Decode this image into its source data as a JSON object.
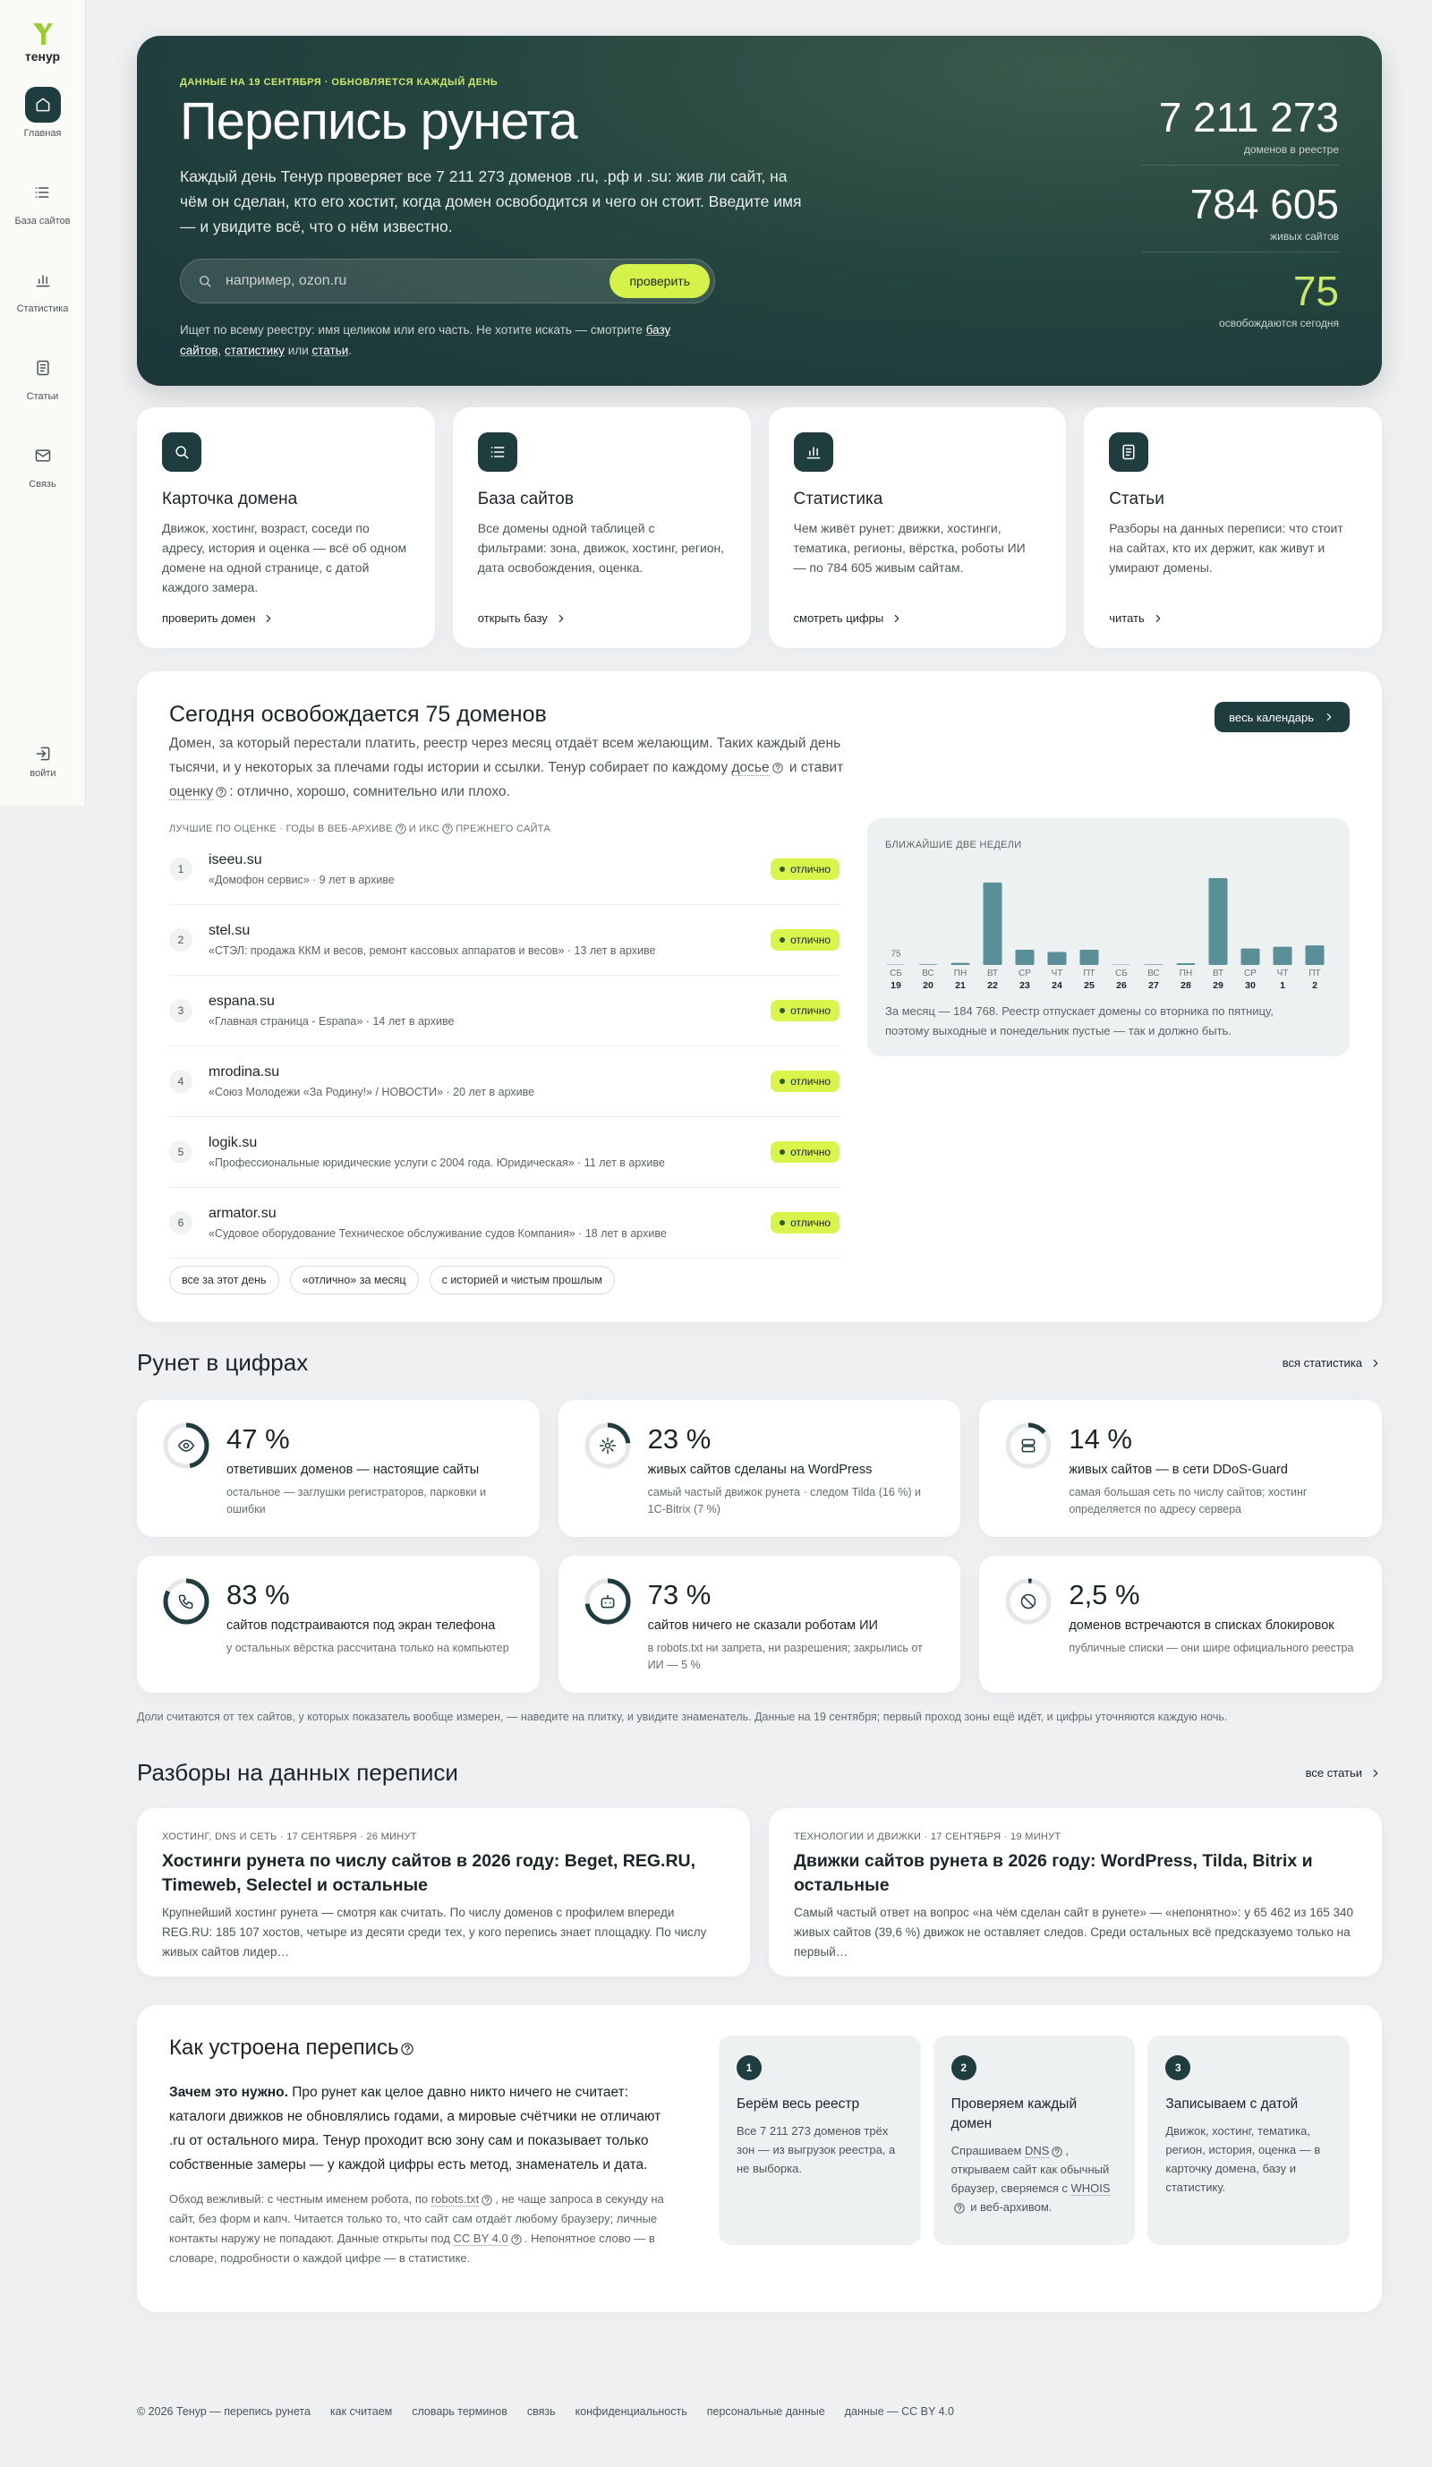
{
  "sidebar": {
    "logo": "тенур",
    "nav": [
      "Главная",
      "База сайтов",
      "Статистика",
      "Статьи",
      "Связь"
    ],
    "login": "войти"
  },
  "hero": {
    "kicker": "ДАННЫЕ НА 19 СЕНТЯБРЯ · ОБНОВЛЯЕТСЯ КАЖДЫЙ ДЕНЬ",
    "title": "Перепись рунета",
    "description": "Каждый день Тенур проверяет все 7 211 273 доменов .ru, .рф и .su: жив ли сайт, на чём он сделан, кто его хостит, когда домен освободится и чего он стоит. Введите имя — и увидите всё, что о нём известно.",
    "search_placeholder": "например, ozon.ru",
    "search_button": "проверить",
    "note": [
      "Ищет по всему реестру: имя целиком или его часть. Не хотите искать — смотрите ",
      {
        "link": "базу сайтов"
      },
      ", ",
      {
        "link": "статистику"
      },
      " или ",
      {
        "link": "статьи"
      },
      "."
    ],
    "stats": [
      {
        "value": "7 211 273",
        "label": "доменов в реестре"
      },
      {
        "value": "784 605",
        "label": "живых сайтов"
      },
      {
        "value": "75",
        "label": "освобождаются сегодня"
      }
    ]
  },
  "cards": [
    {
      "title": "Карточка домена",
      "text": "Движок, хостинг, возраст, соседи по адресу, история и оценка — всё об одном домене на одной странице, с датой каждого замера.",
      "link": "проверить домен"
    },
    {
      "title": "База сайтов",
      "text": "Все домены одной таблицей с фильтрами: зона, движок, хостинг, регион, дата освобождения, оценка.",
      "link": "открыть базу"
    },
    {
      "title": "Статистика",
      "text": "Чем живёт рунет: движки, хостинги, тематика, регионы, вёрстка, роботы ИИ — по 784 605 живым сайтам.",
      "link": "смотреть цифры"
    },
    {
      "title": "Статьи",
      "text": "Разборы на данных переписи: что стоит на сайтах, кто их держит, как живут и умирают домены.",
      "link": "читать"
    }
  ],
  "today": {
    "title": "Сегодня освобождается 75 доменов",
    "button": "весь календарь",
    "description": [
      "Домен, за который перестали платить, реестр через месяц отдаёт всем желающим. Таких каждый день тысячи, и у некоторых за плечами годы истории и ссылки. Тенур собирает по каждому ",
      {
        "term": "досье"
      },
      " и ставит ",
      {
        "term": "оценку"
      },
      ": отлично, хорошо, сомнительно или плохо."
    ],
    "list_header": [
      "ЛУЧШИЕ ПО ОЦЕНКЕ · ГОДЫ В ВЕБ-АРХИВЕ",
      {
        "term": ""
      },
      "И ИКС",
      {
        "term": ""
      },
      "ПРЕЖНЕГО САЙТА"
    ],
    "rows": [
      {
        "n": "1",
        "domain": "iseeu.su",
        "info": "«Домофон сервис» · 9 лет в архиве",
        "grade": "отлично"
      },
      {
        "n": "2",
        "domain": "stel.su",
        "info": "«СТЭЛ: продажа ККМ и весов, ремонт кассовых аппаратов и весов» · 13 лет в архиве",
        "grade": "отлично"
      },
      {
        "n": "3",
        "domain": "espana.su",
        "info": "«Главная страница - Espana» · 14 лет в архиве",
        "grade": "отлично"
      },
      {
        "n": "4",
        "domain": "mrodina.su",
        "info": "«Союз Молодежи «За Родину!» / НОВОСТИ» · 20 лет в архиве",
        "grade": "отлично"
      },
      {
        "n": "5",
        "domain": "logik.su",
        "info": "«Профессиональные юридические услуги с 2004 года. Юридическая» · 11 лет в архиве",
        "grade": "отлично"
      },
      {
        "n": "6",
        "domain": "armator.su",
        "info": "«Судовое оборудование Техническое обслуживание судов Компания» · 18 лет в архиве",
        "grade": "отлично"
      }
    ],
    "chips": [
      "все за этот день",
      "«отлично» за месяц",
      "с историей и чистым прошлым"
    ],
    "chart": {
      "type": "bar",
      "title": "БЛИЖАЙШИЕ ДВЕ НЕДЕЛИ",
      "weekdays": [
        "СБ",
        "ВС",
        "ПН",
        "ВТ",
        "СР",
        "ЧТ",
        "ПТ",
        "СБ",
        "ВС",
        "ПН",
        "ВТ",
        "СР",
        "ЧТ",
        "ПТ"
      ],
      "dates": [
        "19",
        "20",
        "21",
        "22",
        "23",
        "24",
        "25",
        "26",
        "27",
        "28",
        "29",
        "30",
        "1",
        "2"
      ],
      "values": [
        75,
        150,
        500,
        19000,
        3500,
        3000,
        3500,
        80,
        120,
        400,
        20000,
        3800,
        4200,
        4500
      ],
      "color": "#5b8f97",
      "note": "За месяц — 184 768. Реестр отпускает домены со вторника по пятницу, поэтому выходные и понедельник пустые — так и должно быть."
    }
  },
  "numbers": {
    "title": "Рунет в цифрах",
    "link": "вся статистика",
    "items": [
      {
        "value": 47,
        "label": "47 %",
        "title": "ответивших доменов — настоящие сайты",
        "text": "остальное — заглушки регистраторов, парковки и ошибки"
      },
      {
        "value": 23,
        "label": "23 %",
        "title": "живых сайтов сделаны на WordPress",
        "text": "самый частый движок рунета · следом Tilda (16 %) и 1С-Bitrix (7 %)"
      },
      {
        "value": 14,
        "label": "14 %",
        "title": "живых сайтов — в сети DDoS-Guard",
        "text": "самая большая сеть по числу сайтов; хостинг определяется по адресу сервера"
      },
      {
        "value": 83,
        "label": "83 %",
        "title": "сайтов подстраиваются под экран телефона",
        "text": "у остальных вёрстка рассчитана только на компьютер"
      },
      {
        "value": 73,
        "label": "73 %",
        "title": "сайтов ничего не сказали роботам ИИ",
        "text": "в robots.txt ни запрета, ни разрешения; закрылись от ИИ — 5 %"
      },
      {
        "value": 2.5,
        "label": "2,5 %",
        "title": "доменов встречаются в списках блокировок",
        "text": "публичные списки — они шире официального реестра"
      }
    ],
    "note": "Доли считаются от тех сайтов, у которых показатель вообще измерен, — наведите на плитку, и увидите знаменатель. Данные на 19 сентября; первый проход зоны ещё идёт, и цифры уточняются каждую ночь."
  },
  "articles": {
    "title": "Разборы на данных переписи",
    "link": "все статьи",
    "items": [
      {
        "meta": "ХОСТИНГ, DNS И СЕТЬ · 17 СЕНТЯБРЯ · 26 МИНУТ",
        "title": "Хостинги рунета по числу сайтов в 2026 году: Beget, REG.RU, Timeweb, Selectel и остальные",
        "text": "Крупнейший хостинг рунета — смотря как считать. По числу доменов с профилем впереди REG.RU: 185 107 хостов, четыре из десяти среди тех, у кого перепись знает площадку. По числу живых сайтов лидер…"
      },
      {
        "meta": "ТЕХНОЛОГИИ И ДВИЖКИ · 17 СЕНТЯБРЯ · 19 МИНУТ",
        "title": "Движки сайтов рунета в 2026 году: WordPress, Tilda, Bitrix и остальные",
        "text": "Самый частый ответ на вопрос «на чём сделан сайт в рунете» — «непонятно»: у 65 462 из 165 340 живых сайтов (39,6 %) движок не оставляет следов. Среди остальных всё предсказуемо только на первый…"
      }
    ]
  },
  "how": {
    "title": "Как устроена перепись",
    "lead_bold": "Зачем это нужно.",
    "lead": "Про рунет как целое давно никто ничего не считает: каталоги движков не обновлялись годами, а мировые счётчики не отличают .ru от остального мира. Тенур проходит всю зону сам и показывает только собственные замеры — у каждой цифры есть метод, знаменатель и дата.",
    "small": [
      "Обход вежливый: с честным именем робота, по ",
      {
        "term": "robots.txt"
      },
      ", не чаще запроса в секунду на сайт, без форм и капч. Читается только то, что сайт сам отдаёт любому браузеру; личные контакты наружу не попадают. Данные открыты под ",
      {
        "term": "CC BY 4.0"
      },
      ". Непонятное слово — в словаре, подробности о каждой цифре — в статистике."
    ],
    "steps": [
      {
        "n": "1",
        "title": "Берём весь реестр",
        "text": [
          "Все 7 211 273 доменов трёх зон — из выгрузок реестра, а не выборка."
        ]
      },
      {
        "n": "2",
        "title": "Проверяем каждый домен",
        "text": [
          "Спрашиваем ",
          {
            "term": "DNS"
          },
          ", открываем сайт как обычный браузер, сверяемся с ",
          {
            "term": "WHOIS"
          },
          " и веб-архивом."
        ]
      },
      {
        "n": "3",
        "title": "Записываем с датой",
        "text": [
          "Движок, хостинг, тематика, регион, история, оценка — в карточку домена, базу и статистику."
        ]
      }
    ]
  },
  "footer": [
    "© 2026 Тенур — перепись рунета",
    "как считаем",
    "словарь терминов",
    "связь",
    "конфиденциальность",
    "персональные данные",
    "данные — CC BY 4.0"
  ]
}
